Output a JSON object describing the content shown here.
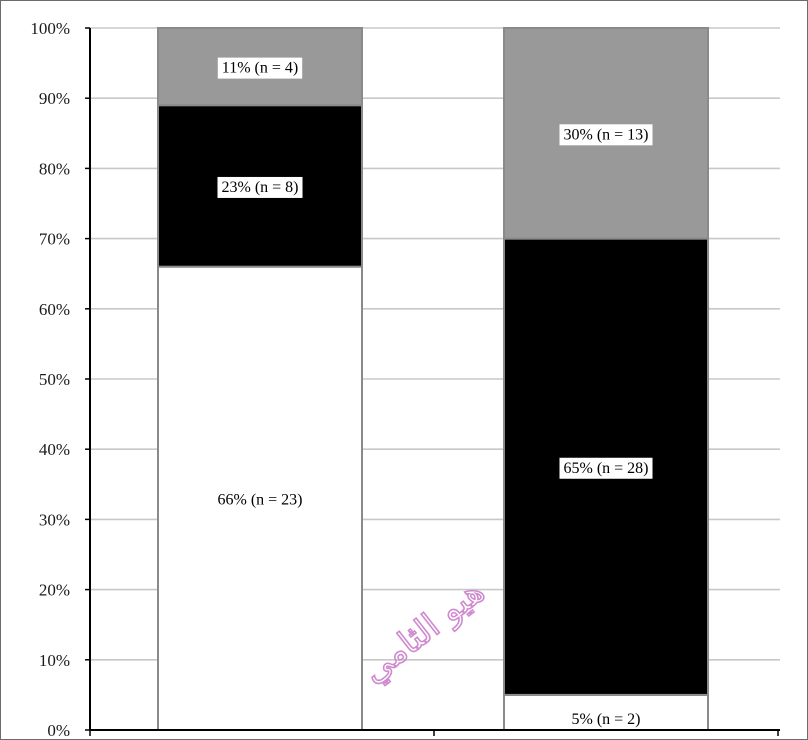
{
  "chart_data": {
    "type": "bar",
    "stacked": true,
    "percent": true,
    "categories": [
      "",
      ""
    ],
    "series": [
      {
        "values": [
          66,
          5
        ],
        "labels": [
          "66% (n = 23)",
          "5% (n = 2)"
        ],
        "color": "#ffffff"
      },
      {
        "values": [
          23,
          65
        ],
        "labels": [
          "23% (n = 8)",
          "65% (n = 28)"
        ],
        "color": "#000000"
      },
      {
        "values": [
          11,
          30
        ],
        "labels": [
          "11% (n = 4)",
          "30% (n = 13)"
        ],
        "color": "#999999"
      }
    ],
    "y_ticks": [
      "0%",
      "10%",
      "20%",
      "30%",
      "40%",
      "50%",
      "60%",
      "70%",
      "80%",
      "90%",
      "100%"
    ],
    "ylim": [
      0,
      100
    ],
    "grid": true
  },
  "watermark": {
    "text": "هيو الثامي",
    "color": "#d08ad0"
  }
}
